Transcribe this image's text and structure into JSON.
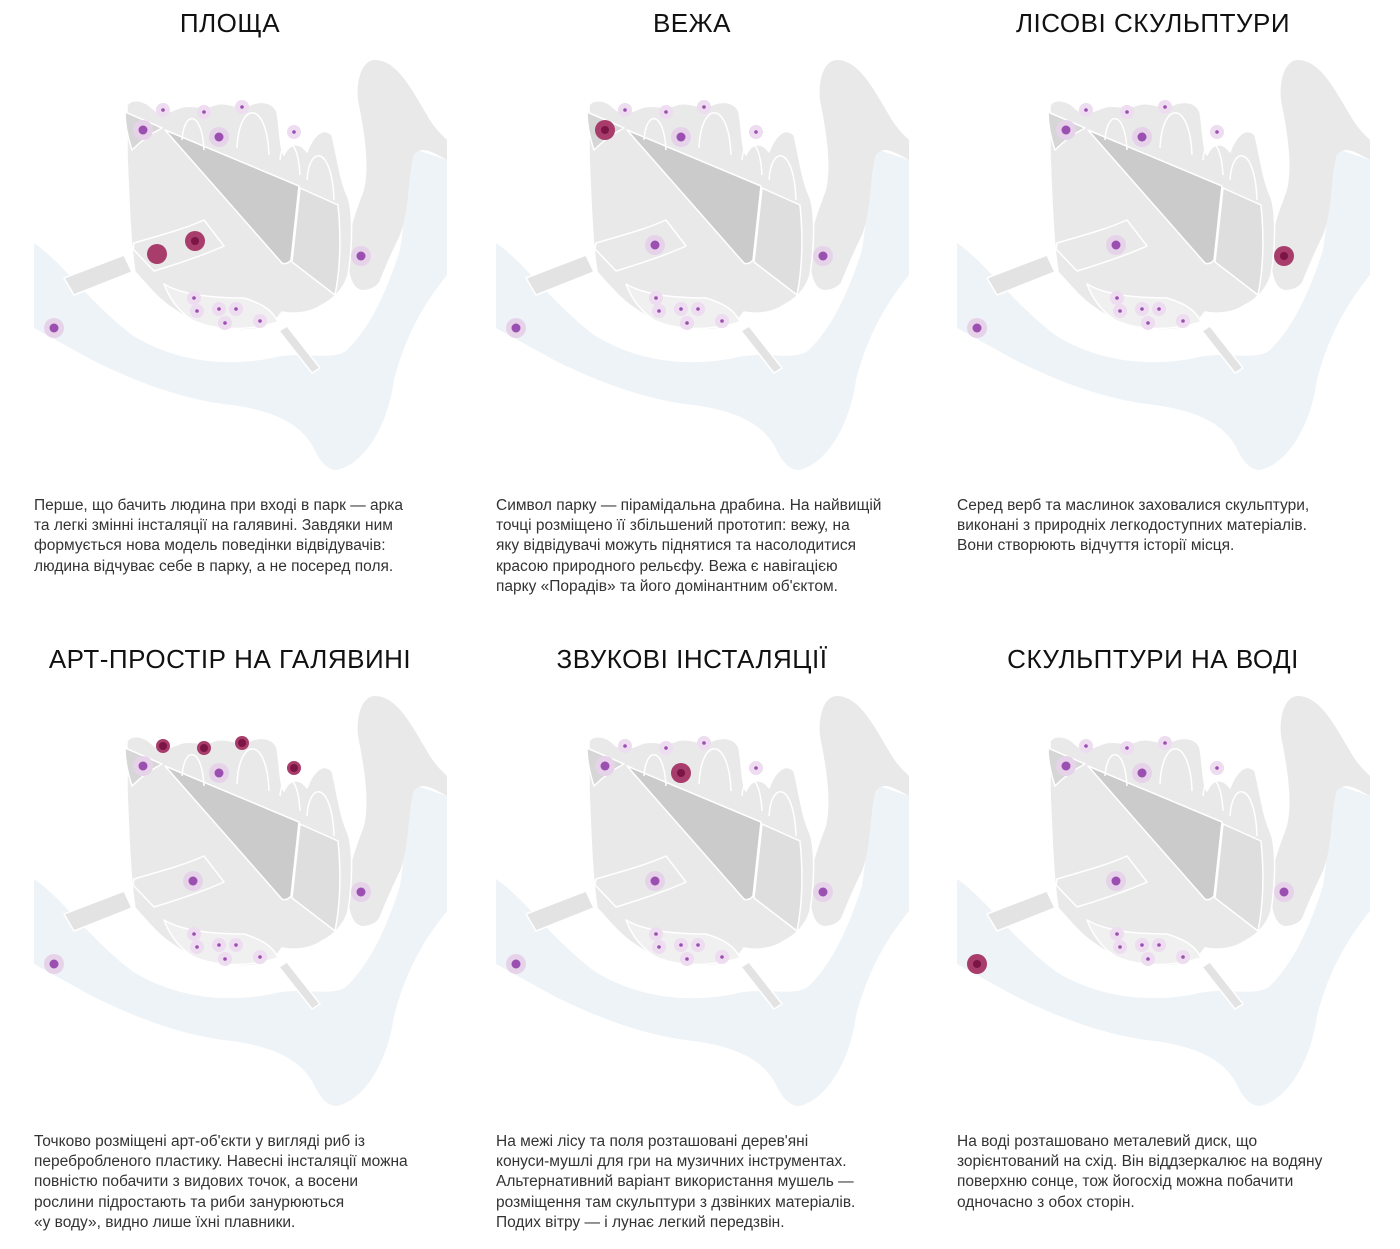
{
  "colors": {
    "water": "#eef3f8",
    "land": "#e9e9e9",
    "land_dark": "#cbcbcb",
    "land_mid": "#dedede",
    "marker_inactive": "#9b4fb0",
    "marker_halo": "#e6d3ea",
    "marker_active": "#a83c6a",
    "marker_active_core": "#7a1545"
  },
  "panels": [
    {
      "title": "ПЛОЩА",
      "highlight": "plaza",
      "text": "Перше, що бачить людина при вході в парк — арка\nта легкі змінні інсталяції на галявині. Завдяки ним\nформується нова модель поведінки відвідувачів:\nлюдина відчуває себе в парку, а не посеред поля."
    },
    {
      "title": "ВЕЖА",
      "highlight": "tower",
      "text": "Символ парку — пірамідальна драбина. На найвищій\nточці розміщено її збільшений прототип: вежу, на\nяку відвідувачі можуть піднятися та насолодитися\nкрасою природного рельєфу. Вежа є навігацією\nпарку «Порадів» та його домінантним об'єктом."
    },
    {
      "title": "ЛІСОВІ СКУЛЬПТУРИ",
      "highlight": "forest",
      "text": "Серед верб та маслинок заховалися скульптури,\nвиконані з природніх легкодоступних матеріалів.\nВони створюють відчуття історії місця."
    },
    {
      "title": "АРТ-ПРОСТІР НА ГАЛЯВИНІ",
      "highlight": "meadow",
      "text": "Точково розміщені арт-об'єкти у вигляді риб із\nперебробленого пластику. Навесні інсталяції можна\nповністю побачити з видових точок, а восени\nрослини підростають та риби занурюються\n«у воду», видно лише їхні плавники."
    },
    {
      "title": "ЗВУКОВІ ІНСТАЛЯЦІЇ",
      "highlight": "sound",
      "text": "На межі лісу та поля розташовані дерев'яні\nконуси-мушлі для гри на музичних інструментах.\nАльтернативний варіант використання мушель —\nрозміщення там скульптури з дзвінких матеріалів.\nПодих вітру — і лунає легкий передзвін."
    },
    {
      "title": "СКУЛЬПТУРИ НА ВОДІ",
      "highlight": "water",
      "text": "На воді розташовано металевий диск, що\nзорієнтований на схід. Він віддзеркалює на водяну\nповерхню сонце, тож йогосхід можна побачити\nодночасно з обох сторін."
    }
  ]
}
